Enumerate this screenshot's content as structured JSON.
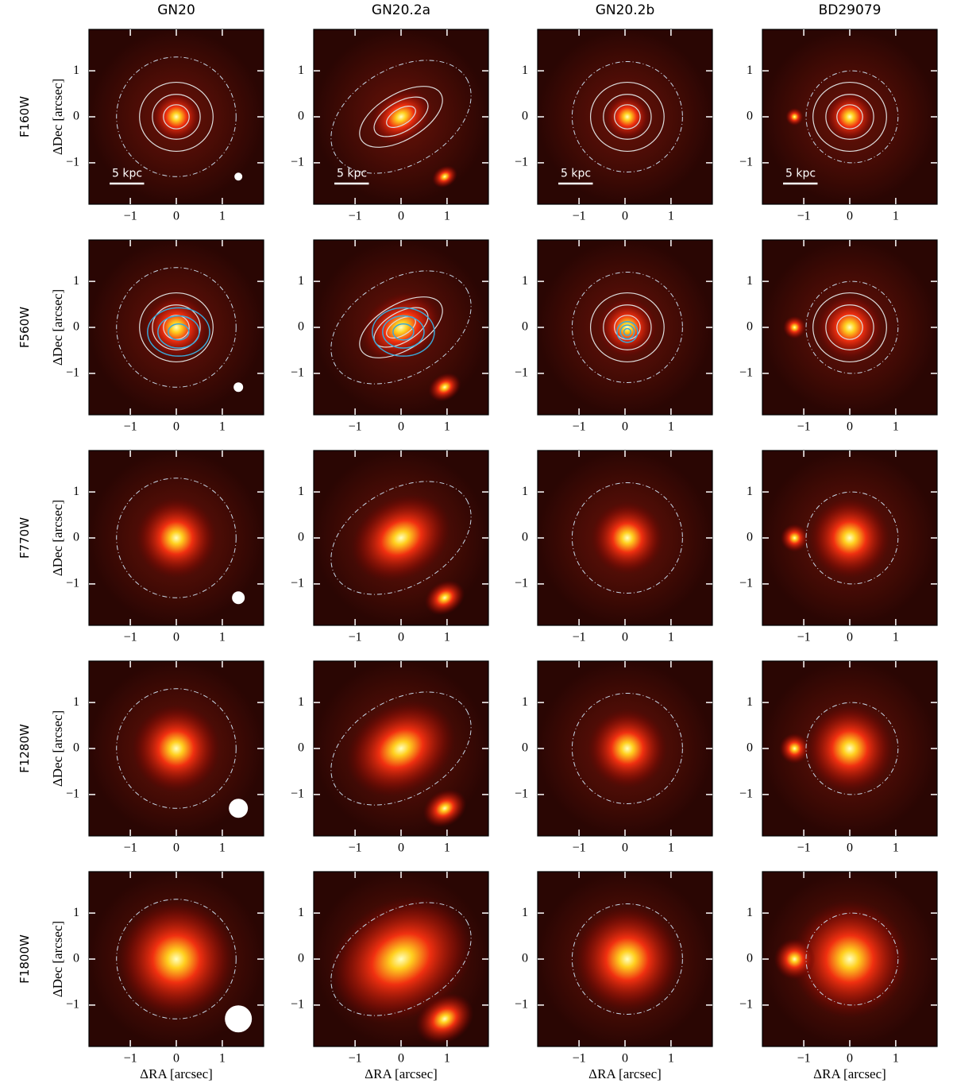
{
  "columns": [
    "GN20",
    "GN20.2a",
    "GN20.2b",
    "BD29079"
  ],
  "rows": [
    "F160W",
    "F560W",
    "F770W",
    "F1280W",
    "F1800W"
  ],
  "y_label": "ΔDec [arcsec]",
  "x_label": "ΔRA [arcsec]",
  "scale_bar": "5 kpc",
  "xlim": [
    -1.9,
    1.9
  ],
  "ylim": [
    -1.9,
    1.9
  ],
  "xticks": [
    {
      "value": -1,
      "label": "−1"
    },
    0,
    1
  ],
  "yticks": [
    {
      "value": -1,
      "label": "−1"
    },
    0,
    1
  ]
}
